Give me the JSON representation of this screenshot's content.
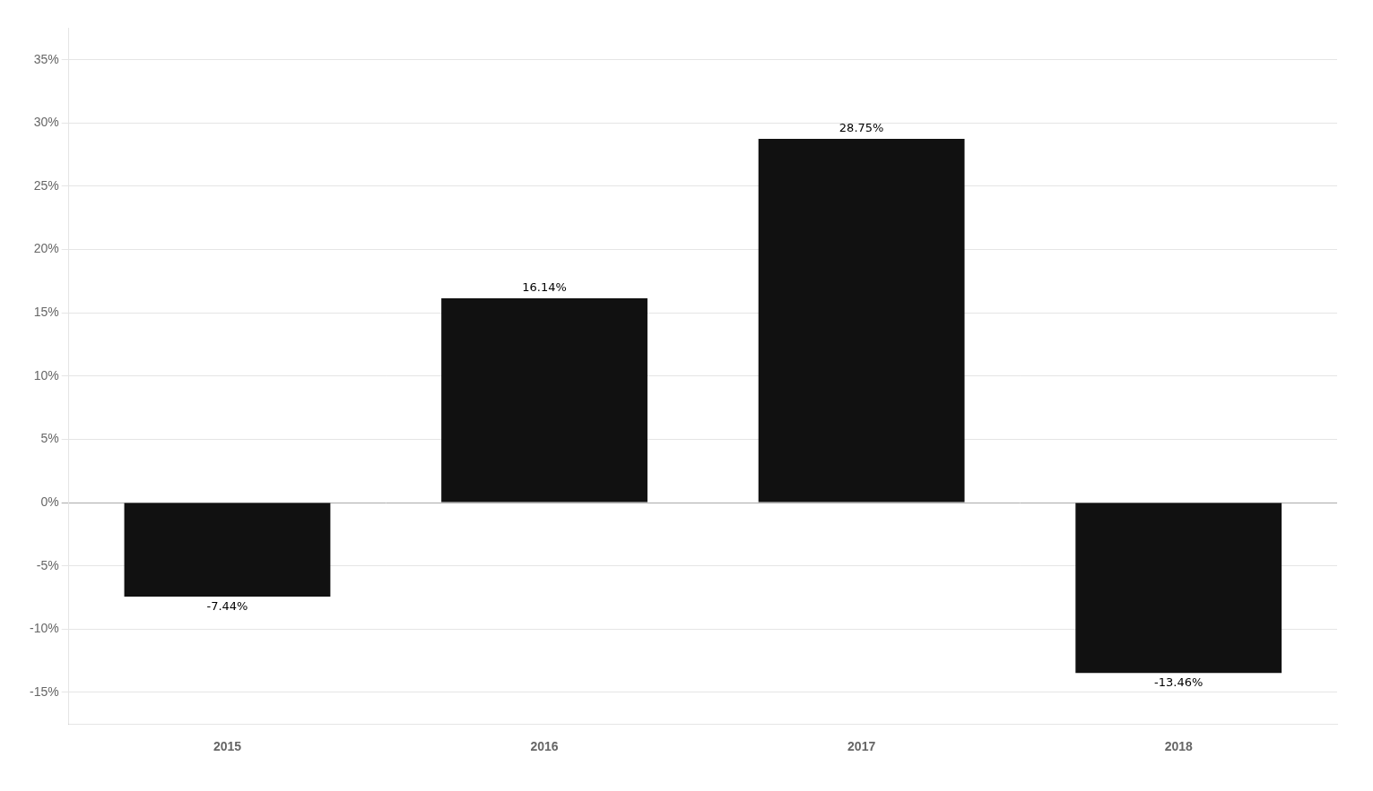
{
  "chart_data": {
    "type": "bar",
    "categories": [
      "2015",
      "2016",
      "2017",
      "2018"
    ],
    "values": [
      -7.44,
      16.14,
      28.75,
      -13.46
    ],
    "value_labels": [
      "-7.44%",
      "16.14%",
      "28.75%",
      "-13.46%"
    ],
    "data_labels": true,
    "color": "#111111",
    "ylim": [
      -17.5,
      37.5
    ],
    "yticks": [
      {
        "value": -15,
        "label": "-15%"
      },
      {
        "value": -10,
        "label": "-10%"
      },
      {
        "value": -5,
        "label": "-5%"
      },
      {
        "value": 0,
        "label": "0%"
      },
      {
        "value": 5,
        "label": "5%"
      },
      {
        "value": 10,
        "label": "10%"
      },
      {
        "value": 15,
        "label": "15%"
      },
      {
        "value": 20,
        "label": "20%"
      },
      {
        "value": 25,
        "label": "25%"
      },
      {
        "value": 30,
        "label": "30%"
      },
      {
        "value": 35,
        "label": "35%"
      }
    ],
    "grid": true
  }
}
